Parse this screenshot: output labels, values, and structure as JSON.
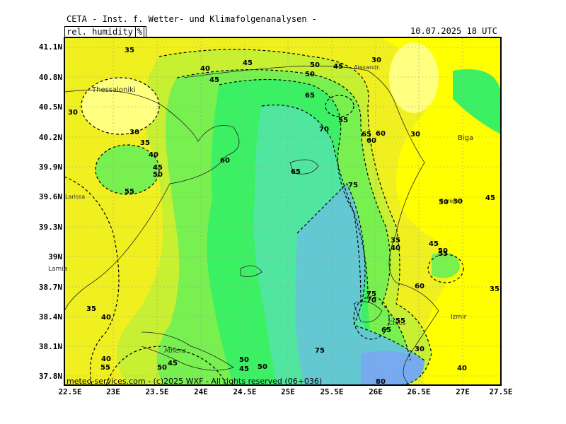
{
  "header": {
    "title": "CETA - Inst. f. Wetter- und Klimafolgenanalysen -",
    "variable": "rel. humidity",
    "unit": "%",
    "timestamp": "10.07.2025 18 UTC"
  },
  "footer": {
    "copyright": "meteo-services.com - (c)2025 WXF - All rights reserved (06+036)"
  },
  "axes": {
    "lat_labels": [
      "41.1N",
      "40.8N",
      "40.5N",
      "40.2N",
      "39.9N",
      "39.6N",
      "39.3N",
      "39N",
      "38.7N",
      "38.4N",
      "38.1N",
      "37.8N"
    ],
    "lon_labels": [
      "22.5E",
      "23E",
      "23.5E",
      "24E",
      "24.5E",
      "25E",
      "25.5E",
      "26E",
      "26.5E",
      "27E",
      "27.5E"
    ]
  },
  "cities": [
    "Thessaloniki",
    "Alexandr.",
    "Biga",
    "Larissa",
    "Edremit",
    "Lamia",
    "Athens",
    "Izmir",
    "Chios"
  ],
  "contour_labels": [
    "35",
    "40",
    "45",
    "30",
    "30",
    "50",
    "50",
    "45",
    "65",
    "55",
    "60",
    "30",
    "45",
    "30",
    "35",
    "40",
    "45",
    "50",
    "55",
    "60",
    "70",
    "65",
    "75",
    "65",
    "60",
    "50",
    "30",
    "45",
    "50",
    "55",
    "45",
    "40",
    "35",
    "60",
    "75",
    "70",
    "65",
    "55",
    "35",
    "40",
    "45",
    "50",
    "55",
    "50",
    "45",
    "40",
    "50",
    "75",
    "80",
    "30",
    "40",
    "35"
  ],
  "legend": {
    "humidity_scale": [
      30,
      35,
      40,
      45,
      50,
      55,
      60,
      65,
      70,
      75,
      80
    ],
    "colors": [
      "#ffff00",
      "#f0f020",
      "#dcf028",
      "#c8f032",
      "#a0f03c",
      "#78f050",
      "#50f050",
      "#3cf064",
      "#50e6a0",
      "#64c8d2",
      "#78aaf0"
    ]
  }
}
